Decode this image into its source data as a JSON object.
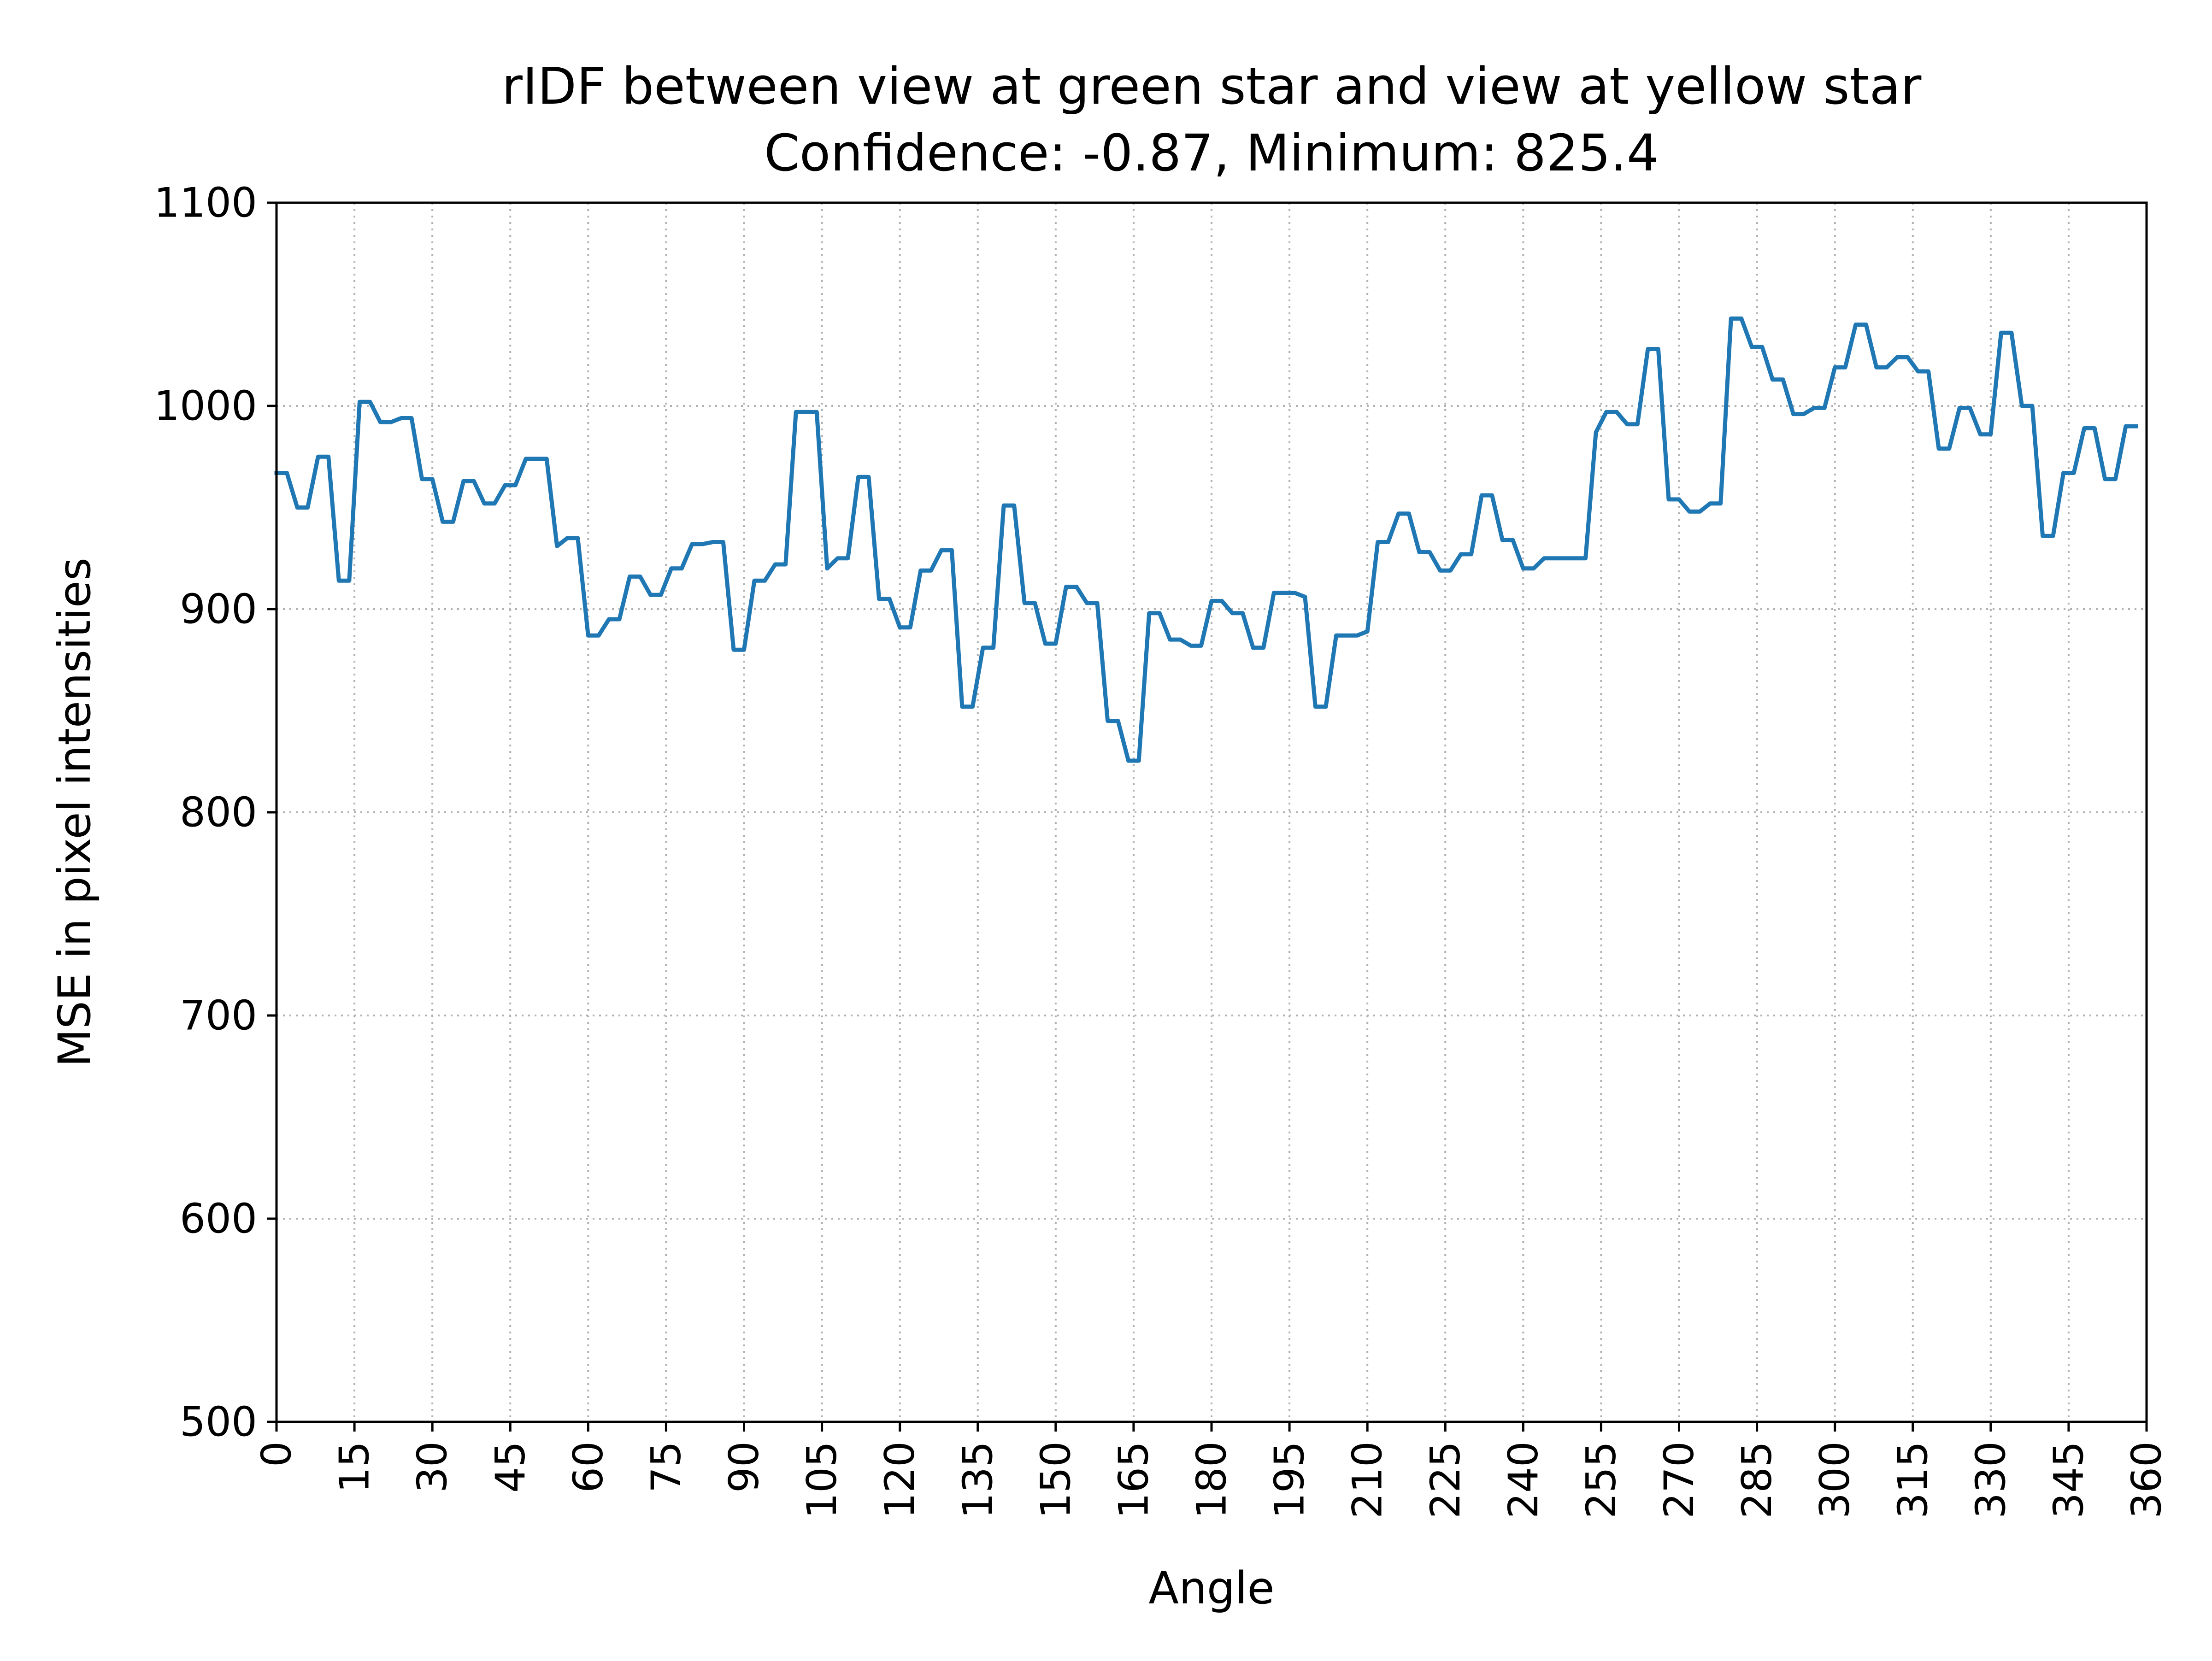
{
  "chart_data": {
    "type": "line",
    "title": "rIDF between view at green star and view at yellow star",
    "subtitle": "Confidence: -0.87, Minimum: 825.4",
    "xlabel": "Angle",
    "ylabel": "MSE in pixel intensities",
    "xlim": [
      0,
      360
    ],
    "ylim": [
      500,
      1100
    ],
    "x_ticks": [
      0,
      15,
      30,
      45,
      60,
      75,
      90,
      105,
      120,
      135,
      150,
      165,
      180,
      195,
      210,
      225,
      240,
      255,
      270,
      285,
      300,
      315,
      330,
      345,
      360
    ],
    "y_ticks": [
      500,
      600,
      700,
      800,
      900,
      1000,
      1100
    ],
    "grid": true,
    "line_color": "#1f77b4",
    "series": [
      {
        "x": [
          0,
          2,
          4,
          6,
          8,
          10,
          12,
          14,
          16,
          18,
          20,
          22,
          24,
          26,
          28,
          30,
          32,
          34,
          36,
          38,
          40,
          42,
          44,
          46,
          48,
          50,
          52,
          54,
          56,
          58,
          60,
          62,
          64,
          66,
          68,
          70,
          72,
          74,
          76,
          78,
          80,
          82,
          84,
          86,
          88,
          90,
          92,
          94,
          96,
          98,
          100,
          102,
          104,
          106,
          108,
          110,
          112,
          114,
          116,
          118,
          120,
          122,
          124,
          126,
          128,
          130,
          132,
          134,
          136,
          138,
          140,
          142,
          144,
          146,
          148,
          150,
          152,
          154,
          156,
          158,
          160,
          162,
          164,
          166,
          168,
          170,
          172,
          174,
          176,
          178,
          180,
          182,
          184,
          186,
          188,
          190,
          192,
          194,
          196,
          198,
          200,
          202,
          204,
          206,
          208,
          210,
          212,
          214,
          216,
          218,
          220,
          222,
          224,
          226,
          228,
          230,
          232,
          234,
          236,
          238,
          240,
          242,
          244,
          246,
          248,
          250,
          252,
          254,
          256,
          258,
          260,
          262,
          264,
          266,
          268,
          270,
          272,
          274,
          276,
          278,
          280,
          282,
          284,
          286,
          288,
          290,
          292,
          294,
          296,
          298,
          300,
          302,
          304,
          306,
          308,
          310,
          312,
          314,
          316,
          318,
          320,
          322,
          324,
          326,
          328,
          330,
          332,
          334,
          336,
          338,
          340,
          342,
          344,
          346,
          348,
          350,
          352,
          354,
          356,
          358
        ],
        "values": [
          967,
          967,
          950,
          950,
          975,
          975,
          914,
          914,
          1002,
          1002,
          992,
          992,
          994,
          994,
          964,
          964,
          943,
          943,
          963,
          963,
          952,
          952,
          961,
          961,
          974,
          974,
          974,
          931,
          935,
          935,
          887,
          887,
          895,
          895,
          916,
          916,
          907,
          907,
          920,
          920,
          932,
          932,
          933,
          933,
          880,
          880,
          914,
          914,
          922,
          922,
          997,
          997,
          997,
          920,
          925,
          925,
          965,
          965,
          905,
          905,
          891,
          891,
          919,
          919,
          929,
          929,
          852,
          852,
          881,
          881,
          951,
          951,
          903,
          903,
          883,
          883,
          911,
          911,
          903,
          903,
          845,
          845,
          825.4,
          825.4,
          898,
          898,
          885,
          885,
          882,
          882,
          904,
          904,
          898,
          898,
          881,
          881,
          908,
          908,
          908,
          906,
          852,
          852,
          887,
          887,
          887,
          889,
          933,
          933,
          947,
          947,
          928,
          928,
          919,
          919,
          927,
          927,
          956,
          956,
          934,
          934,
          920,
          920,
          925,
          925,
          925,
          925,
          925,
          987,
          997,
          997,
          991,
          991,
          1028,
          1028,
          954,
          954,
          948,
          948,
          952,
          952,
          1043,
          1043,
          1029,
          1029,
          1013,
          1013,
          996,
          996,
          999,
          999,
          1019,
          1019,
          1040,
          1040,
          1019,
          1019,
          1024,
          1024,
          1017,
          1017,
          979,
          979,
          999,
          999,
          986,
          986,
          1036,
          1036,
          1000,
          1000,
          936,
          936,
          967,
          967,
          989,
          989,
          964,
          964,
          990,
          990
        ]
      }
    ]
  }
}
